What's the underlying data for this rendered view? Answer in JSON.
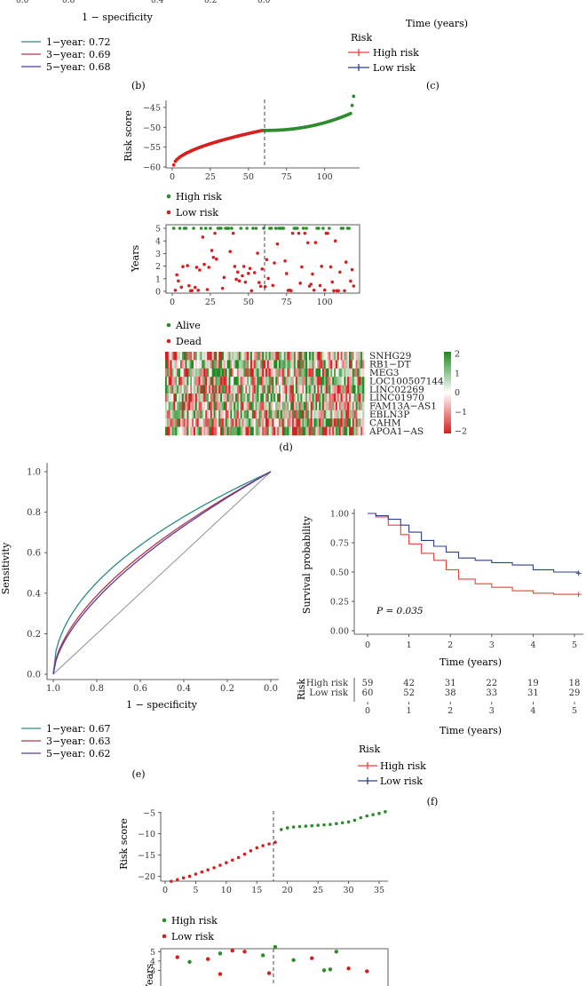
{
  "top_fragment": {
    "roc_xlabel": "1 − specificity",
    "km_xlabel": "Time (years)",
    "roc_legend": [
      "1−year: 0.72",
      "3−year: 0.69",
      "5−year: 0.68"
    ],
    "km_legend_title": "Risk",
    "km_legend": [
      "High risk",
      "Low risk"
    ]
  },
  "panel_labels": {
    "b": "(b)",
    "c": "(c)",
    "d": "(d)",
    "e": "(e)",
    "f": "(f)"
  },
  "panel_d": {
    "risk_ylabel": "Risk score",
    "years_ylabel": "Years",
    "legend_risk": [
      "High risk",
      "Low risk"
    ],
    "legend_status": [
      "Alive",
      "Dead"
    ],
    "genes": [
      "SNHG29",
      "RB1−DT",
      "MEG3",
      "LOC100507144",
      "LINC02269",
      "LINC01970",
      "FAM13A−AS1",
      "EBLN3P",
      "CAHM",
      "APOA1−AS"
    ],
    "colorbar_ticks": [
      "2",
      "1",
      "0",
      "−1",
      "−2"
    ]
  },
  "panel_e": {
    "ylabel": "Sensitivity",
    "xlabel": "1 − specificity",
    "legend": [
      "1−year: 0.67",
      "3−year: 0.63",
      "5−year: 0.62"
    ]
  },
  "panel_f": {
    "ylabel": "Survival probability",
    "xlabel": "Time (years)",
    "pvalue": "P = 0.035",
    "table_title": "Risk",
    "table_rows": [
      {
        "label": "High risk",
        "values": [
          "59",
          "42",
          "31",
          "22",
          "19",
          "18"
        ]
      },
      {
        "label": "Low risk",
        "values": [
          "60",
          "52",
          "38",
          "33",
          "31",
          "29"
        ]
      }
    ],
    "legend_title": "Risk",
    "legend": [
      "High risk",
      "Low risk"
    ]
  },
  "panel_g": {
    "risk_ylabel": "Risk score",
    "years_ylabel": "Years",
    "legend_risk": [
      "High risk",
      "Low risk"
    ]
  },
  "colors": {
    "high_risk_point": "#2e8b2e",
    "low_risk_point": "#d62020",
    "km_high": "#e8413c",
    "km_low": "#2b3f93",
    "roc_1y": "#2a8a84",
    "roc_3y": "#b03a4a",
    "roc_5y": "#5b3aa0",
    "heat_high": "#1f8a1f",
    "heat_low": "#d61f1f"
  },
  "chart_data": [
    {
      "id": "d_risk",
      "type": "scatter",
      "xlim": [
        0,
        120
      ],
      "ylim": [
        -60,
        -43
      ],
      "x_ticks": [
        0,
        25,
        50,
        75,
        100
      ],
      "y_ticks": [
        -45,
        -50,
        -55,
        -60
      ],
      "cutoff_x": 59,
      "low_n": 59,
      "high_n": 60,
      "low_range": [
        -59.5,
        -50.8
      ],
      "high_range": [
        -50.8,
        -46.2
      ],
      "high_outliers": [
        -44.5,
        -42.2
      ]
    },
    {
      "id": "d_years",
      "type": "scatter",
      "xlim": [
        0,
        120
      ],
      "ylim": [
        0,
        5
      ],
      "x_ticks": [
        0,
        25,
        50,
        75,
        100
      ],
      "y_ticks": [
        0,
        1,
        2,
        3,
        4,
        5
      ],
      "cutoff_x": 59
    },
    {
      "id": "e_roc",
      "type": "line",
      "xlim": [
        1.0,
        0.0
      ],
      "ylim": [
        0.0,
        1.0
      ],
      "x_ticks": [
        "1.0",
        "0.8",
        "0.6",
        "0.4",
        "0.2",
        "0.0"
      ],
      "y_ticks": [
        "0.0",
        "0.2",
        "0.4",
        "0.6",
        "0.8",
        "1.0"
      ],
      "series": [
        {
          "name": "1−year: 0.67",
          "auc": 0.67
        },
        {
          "name": "3−year: 0.63",
          "auc": 0.63
        },
        {
          "name": "5−year: 0.62",
          "auc": 0.62
        }
      ]
    },
    {
      "id": "f_km",
      "type": "line",
      "xlim": [
        0,
        5.1
      ],
      "ylim": [
        0,
        1.0
      ],
      "x_ticks": [
        "0",
        "1",
        "2",
        "3",
        "4",
        "5"
      ],
      "y_ticks": [
        "0.00",
        "0.25",
        "0.50",
        "0.75",
        "1.00"
      ],
      "series": [
        {
          "name": "High risk",
          "x": [
            0,
            0.2,
            0.5,
            0.8,
            1.0,
            1.3,
            1.6,
            1.9,
            2.2,
            2.6,
            3.0,
            3.5,
            4.0,
            4.5,
            5.1
          ],
          "y": [
            1.0,
            0.97,
            0.9,
            0.82,
            0.74,
            0.66,
            0.6,
            0.52,
            0.44,
            0.4,
            0.37,
            0.34,
            0.32,
            0.31,
            0.31
          ]
        },
        {
          "name": "Low risk",
          "x": [
            0,
            0.2,
            0.5,
            0.8,
            1.0,
            1.3,
            1.6,
            1.9,
            2.2,
            2.6,
            3.0,
            3.5,
            4.0,
            4.5,
            5.1
          ],
          "y": [
            1.0,
            0.98,
            0.95,
            0.9,
            0.84,
            0.77,
            0.72,
            0.67,
            0.62,
            0.6,
            0.58,
            0.56,
            0.52,
            0.5,
            0.49
          ]
        }
      ]
    },
    {
      "id": "g_risk",
      "type": "scatter",
      "xlim": [
        0,
        36
      ],
      "ylim": [
        -22,
        -4
      ],
      "x_ticks": [
        0,
        5,
        10,
        15,
        20,
        25,
        30,
        35
      ],
      "y_ticks": [
        -5,
        -10,
        -15,
        -20
      ],
      "cutoff_x": 18,
      "low": [
        -21.2,
        -20.8,
        -20.4,
        -20,
        -19.5,
        -19,
        -18.5,
        -18,
        -17.4,
        -16.8,
        -16.2,
        -15.6,
        -14.8,
        -14,
        -13.3,
        -12.8,
        -12.4,
        -12
      ],
      "high": [
        -9,
        -8.6,
        -8.4,
        -8.3,
        -8.2,
        -8.1,
        -8,
        -7.9,
        -7.8,
        -7.6,
        -7.4,
        -7.2,
        -6.8,
        -6.2,
        -5.8,
        -5.5,
        -5.2,
        -4.8
      ]
    },
    {
      "id": "g_years",
      "type": "scatter",
      "ylim": [
        0,
        5.5
      ],
      "y_ticks": [
        3,
        4,
        5
      ],
      "cutoff_x": 18
    }
  ]
}
